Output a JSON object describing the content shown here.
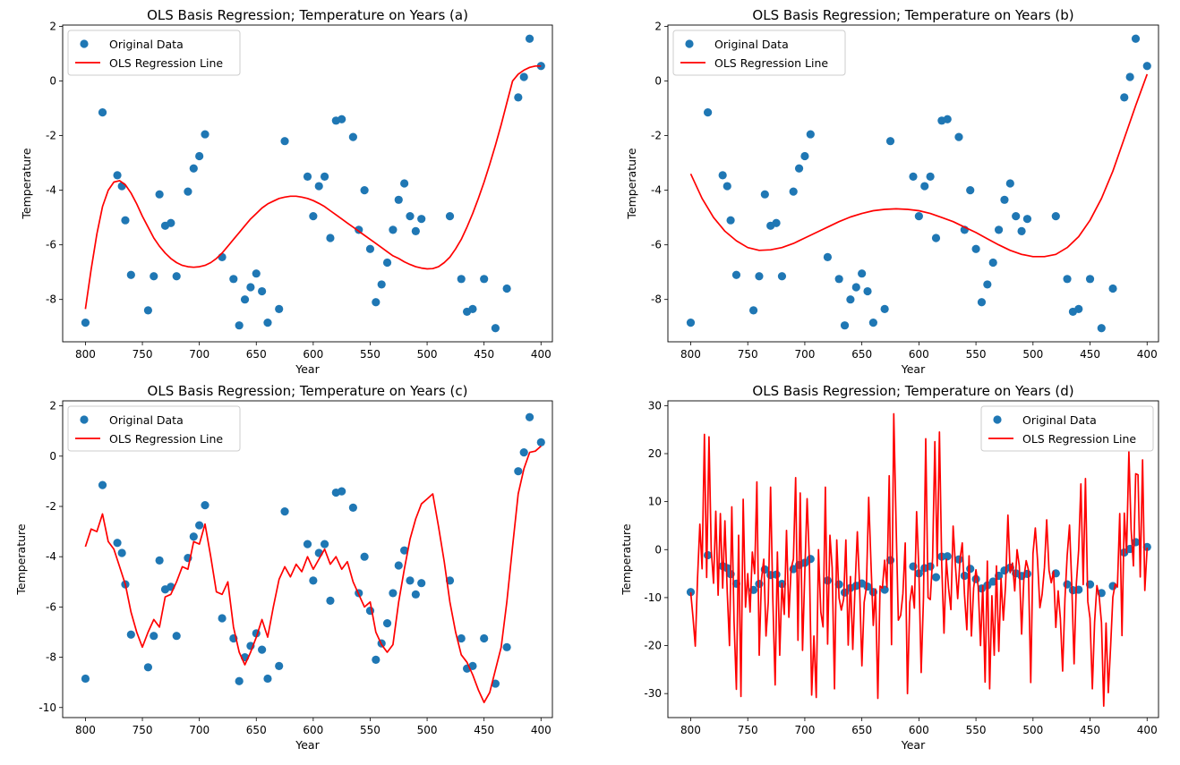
{
  "figure": {
    "xlabel": "Year",
    "ylabel": "Temperature"
  },
  "colors": {
    "points": "#1f77b4",
    "line": "#ff0000"
  },
  "legend_labels": {
    "points": "Original Data",
    "line": "OLS Regression Line"
  },
  "scatter_data": {
    "x": [
      800,
      785,
      772,
      768,
      765,
      760,
      745,
      740,
      735,
      730,
      725,
      720,
      710,
      705,
      700,
      695,
      680,
      670,
      665,
      660,
      655,
      650,
      645,
      640,
      630,
      625,
      605,
      600,
      595,
      590,
      585,
      580,
      575,
      565,
      560,
      555,
      550,
      545,
      540,
      535,
      530,
      525,
      520,
      515,
      510,
      505,
      480,
      470,
      465,
      460,
      450,
      440,
      430,
      420,
      415,
      410,
      400
    ],
    "y": [
      -8.85,
      -1.15,
      -3.45,
      -3.85,
      -5.1,
      -7.1,
      -8.4,
      -7.15,
      -4.15,
      -5.3,
      -5.2,
      -7.15,
      -4.05,
      -3.2,
      -2.75,
      -1.95,
      -6.45,
      -7.25,
      -8.95,
      -8.0,
      -7.55,
      -7.05,
      -7.7,
      -8.85,
      -8.35,
      -2.2,
      -3.5,
      -4.95,
      -3.85,
      -3.5,
      -5.75,
      -1.45,
      -1.4,
      -2.05,
      -5.45,
      -4.0,
      -6.15,
      -8.1,
      -7.45,
      -6.65,
      -5.45,
      -4.35,
      -3.75,
      -4.95,
      -5.5,
      -5.05,
      -4.95,
      -7.25,
      -8.45,
      -8.35,
      -7.25,
      -9.05,
      -7.6,
      -0.6,
      0.15,
      1.55,
      0.55
    ]
  },
  "chart_data": [
    {
      "type": "scatter",
      "title": "OLS Basis Regression; Temperature on Years (a)",
      "xlabel": "Year",
      "ylabel": "Temperature",
      "xlim": [
        820,
        390
      ],
      "ylim": [
        -9.55,
        2.05
      ],
      "xticks": [
        800,
        750,
        700,
        650,
        600,
        550,
        500,
        450,
        400
      ],
      "yticks": [
        2,
        0,
        -2,
        -4,
        -6,
        -8
      ],
      "legend": "top-left",
      "series": [
        {
          "name": "Original Data",
          "kind": "scatter"
        },
        {
          "name": "OLS Regression Line",
          "kind": "line",
          "x": [
            800,
            795,
            790,
            785,
            780,
            775,
            770,
            765,
            760,
            755,
            750,
            745,
            740,
            735,
            730,
            725,
            720,
            715,
            710,
            705,
            700,
            695,
            690,
            685,
            680,
            675,
            670,
            665,
            660,
            655,
            650,
            645,
            640,
            635,
            630,
            625,
            620,
            615,
            610,
            605,
            600,
            595,
            590,
            585,
            580,
            575,
            570,
            565,
            560,
            555,
            550,
            545,
            540,
            535,
            530,
            525,
            520,
            515,
            510,
            505,
            500,
            495,
            490,
            485,
            480,
            475,
            470,
            465,
            460,
            455,
            450,
            445,
            440,
            435,
            430,
            425,
            420,
            415,
            410,
            405,
            400
          ],
          "y": [
            -8.35,
            -6.9,
            -5.6,
            -4.6,
            -4.0,
            -3.7,
            -3.65,
            -3.8,
            -4.1,
            -4.5,
            -4.95,
            -5.35,
            -5.75,
            -6.05,
            -6.3,
            -6.5,
            -6.65,
            -6.75,
            -6.8,
            -6.82,
            -6.8,
            -6.75,
            -6.65,
            -6.5,
            -6.3,
            -6.05,
            -5.8,
            -5.55,
            -5.3,
            -5.05,
            -4.85,
            -4.65,
            -4.5,
            -4.4,
            -4.3,
            -4.25,
            -4.22,
            -4.22,
            -4.25,
            -4.3,
            -4.38,
            -4.48,
            -4.6,
            -4.75,
            -4.9,
            -5.05,
            -5.2,
            -5.35,
            -5.5,
            -5.65,
            -5.8,
            -5.95,
            -6.1,
            -6.25,
            -6.4,
            -6.5,
            -6.62,
            -6.72,
            -6.8,
            -6.85,
            -6.88,
            -6.87,
            -6.8,
            -6.65,
            -6.45,
            -6.15,
            -5.8,
            -5.35,
            -4.85,
            -4.3,
            -3.7,
            -3.05,
            -2.35,
            -1.6,
            -0.8,
            0.0,
            0.25,
            0.4,
            0.5,
            0.55,
            0.55
          ]
        }
      ]
    },
    {
      "type": "scatter",
      "title": "OLS Basis Regression; Temperature on Years (b)",
      "xlabel": "Year",
      "ylabel": "Temperature",
      "xlim": [
        820,
        390
      ],
      "ylim": [
        -9.55,
        2.05
      ],
      "xticks": [
        800,
        750,
        700,
        650,
        600,
        550,
        500,
        450,
        400
      ],
      "yticks": [
        2,
        0,
        -2,
        -4,
        -6,
        -8
      ],
      "legend": "top-left",
      "series": [
        {
          "name": "Original Data",
          "kind": "scatter"
        },
        {
          "name": "OLS Regression Line",
          "kind": "line",
          "x": [
            800,
            790,
            780,
            770,
            760,
            750,
            740,
            730,
            720,
            710,
            700,
            690,
            680,
            670,
            660,
            650,
            640,
            630,
            620,
            610,
            600,
            590,
            580,
            570,
            560,
            550,
            540,
            530,
            520,
            510,
            500,
            490,
            480,
            470,
            460,
            450,
            440,
            430,
            420,
            410,
            400
          ],
          "y": [
            -3.4,
            -4.3,
            -5.0,
            -5.5,
            -5.85,
            -6.1,
            -6.2,
            -6.18,
            -6.1,
            -5.95,
            -5.75,
            -5.55,
            -5.35,
            -5.15,
            -4.98,
            -4.85,
            -4.75,
            -4.7,
            -4.68,
            -4.7,
            -4.75,
            -4.85,
            -5.0,
            -5.15,
            -5.35,
            -5.55,
            -5.78,
            -6.0,
            -6.2,
            -6.35,
            -6.43,
            -6.43,
            -6.35,
            -6.1,
            -5.7,
            -5.1,
            -4.3,
            -3.3,
            -2.1,
            -0.9,
            0.25
          ]
        }
      ]
    },
    {
      "type": "scatter",
      "title": "OLS Basis Regression; Temperature on Years (c)",
      "xlabel": "Year",
      "ylabel": "Temperature",
      "xlim": [
        820,
        390
      ],
      "ylim": [
        -10.4,
        2.2
      ],
      "xticks": [
        800,
        750,
        700,
        650,
        600,
        550,
        500,
        450,
        400
      ],
      "yticks": [
        2,
        0,
        -2,
        -4,
        -6,
        -8,
        -10
      ],
      "legend": "top-left",
      "series": [
        {
          "name": "Original Data",
          "kind": "scatter"
        },
        {
          "name": "OLS Regression Line",
          "kind": "line",
          "x": [
            800,
            795,
            790,
            785,
            780,
            775,
            770,
            765,
            760,
            755,
            750,
            745,
            740,
            735,
            730,
            725,
            720,
            715,
            710,
            705,
            700,
            695,
            690,
            685,
            680,
            675,
            670,
            665,
            660,
            655,
            650,
            645,
            640,
            635,
            630,
            625,
            620,
            615,
            610,
            605,
            600,
            595,
            590,
            585,
            580,
            575,
            570,
            565,
            560,
            555,
            550,
            545,
            540,
            535,
            530,
            525,
            520,
            515,
            510,
            505,
            500,
            495,
            490,
            485,
            480,
            475,
            470,
            465,
            460,
            455,
            450,
            445,
            440,
            435,
            430,
            425,
            420,
            415,
            410,
            405,
            400
          ],
          "y": [
            -3.6,
            -2.9,
            -3.0,
            -2.3,
            -3.4,
            -3.7,
            -4.4,
            -5.1,
            -6.2,
            -7.0,
            -7.6,
            -7.0,
            -6.5,
            -6.8,
            -5.6,
            -5.5,
            -5.0,
            -4.4,
            -4.5,
            -3.4,
            -3.5,
            -2.7,
            -4.0,
            -5.4,
            -5.5,
            -5.0,
            -6.8,
            -7.8,
            -8.3,
            -7.8,
            -7.2,
            -6.5,
            -7.2,
            -6.0,
            -4.9,
            -4.4,
            -4.8,
            -4.3,
            -4.6,
            -4.0,
            -4.5,
            -4.1,
            -3.7,
            -4.3,
            -4.0,
            -4.5,
            -4.2,
            -5.0,
            -5.5,
            -6.0,
            -5.8,
            -7.0,
            -7.5,
            -7.8,
            -7.5,
            -5.8,
            -4.5,
            -3.3,
            -2.5,
            -1.9,
            -1.7,
            -1.5,
            -2.8,
            -4.2,
            -5.8,
            -7.0,
            -7.9,
            -8.2,
            -8.7,
            -9.3,
            -9.8,
            -9.4,
            -8.5,
            -7.6,
            -5.8,
            -3.6,
            -1.5,
            -0.5,
            0.15,
            0.2,
            0.4
          ]
        }
      ]
    },
    {
      "type": "scatter",
      "title": "OLS Basis Regression; Temperature on Years (d)",
      "xlabel": "Year",
      "ylabel": "Temperature",
      "xlim": [
        820,
        390
      ],
      "ylim": [
        -35,
        31
      ],
      "xticks": [
        800,
        750,
        700,
        650,
        600,
        550,
        500,
        450,
        400
      ],
      "yticks": [
        30,
        20,
        10,
        0,
        -10,
        -20,
        -30
      ],
      "legend": "top-right",
      "series": [
        {
          "name": "Original Data",
          "kind": "scatter"
        },
        {
          "name": "OLS Regression Line",
          "kind": "line",
          "x": [
            800,
            798,
            796,
            794,
            792,
            790,
            788,
            786,
            784,
            782,
            780,
            778,
            776,
            774,
            772,
            770,
            768,
            766,
            764,
            762,
            760,
            758,
            756,
            754,
            752,
            750,
            748,
            746,
            744,
            742,
            740,
            738,
            736,
            734,
            732,
            730,
            728,
            726,
            724,
            722,
            720,
            718,
            716,
            714,
            712,
            710,
            708,
            706,
            704,
            702,
            700,
            698,
            696,
            694,
            692,
            690,
            688,
            686,
            684,
            682,
            680,
            678,
            676,
            674,
            672,
            670,
            668,
            666,
            664,
            662,
            660,
            658,
            656,
            654,
            652,
            650,
            648,
            646,
            644,
            642,
            640,
            638,
            636,
            634,
            632,
            630,
            628,
            626,
            624,
            622,
            620,
            618,
            616,
            614,
            612,
            610,
            608,
            606,
            604,
            602,
            600,
            598,
            596,
            594,
            592,
            590,
            588,
            586,
            584,
            582,
            580,
            578,
            576,
            574,
            572,
            570,
            568,
            566,
            564,
            562,
            560,
            558,
            556,
            554,
            552,
            550,
            548,
            546,
            544,
            542,
            540,
            538,
            536,
            534,
            532,
            530,
            528,
            526,
            524,
            522,
            520,
            518,
            516,
            514,
            512,
            510,
            508,
            506,
            504,
            502,
            500,
            498,
            496,
            494,
            492,
            490,
            488,
            486,
            484,
            482,
            480,
            478,
            476,
            474,
            472,
            470,
            468,
            466,
            464,
            462,
            460,
            458,
            456,
            454,
            452,
            450,
            448,
            446,
            444,
            442,
            440,
            438,
            436,
            434,
            432,
            430,
            428,
            426,
            424,
            422,
            420,
            418,
            416,
            414,
            412,
            410,
            408,
            406,
            404,
            402,
            400
          ],
          "y": [
            -8.9,
            -14.0,
            -20.1,
            -6.0,
            5.3,
            -4.0,
            24.0,
            -5.8,
            23.5,
            0.0,
            -7.0,
            8.0,
            -9.5,
            7.5,
            -8.0,
            6.0,
            -8.9,
            -20.0,
            8.9,
            -15.0,
            -29.1,
            3.0,
            -30.6,
            10.5,
            -12.0,
            -5.0,
            -13.0,
            -0.5,
            -5.0,
            14.1,
            -22.0,
            -6.2,
            -2.0,
            -18.0,
            -11.0,
            13.0,
            -10.3,
            -28.2,
            -0.5,
            -22.0,
            -7.0,
            -13.5,
            4.0,
            -14.1,
            -4.0,
            -2.0,
            15.0,
            -18.9,
            11.8,
            -21.0,
            -5.0,
            10.6,
            -2.2,
            -30.3,
            -18.0,
            -30.8,
            0.0,
            -13.0,
            -16.1,
            13.0,
            -19.7,
            3.0,
            -3.8,
            -29.0,
            2.0,
            -10.1,
            -12.6,
            -10.3,
            2.0,
            -19.9,
            -5.6,
            -20.8,
            -8.0,
            3.7,
            -7.5,
            -24.2,
            -11.0,
            -7.9,
            10.9,
            -2.6,
            -15.8,
            -8.2,
            -31.0,
            -7.6,
            -8.0,
            -2.2,
            -7.8,
            15.4,
            -19.8,
            28.3,
            5.2,
            -14.7,
            -13.7,
            -9.2,
            1.4,
            -30.0,
            -11.0,
            -7.6,
            -12.2,
            7.9,
            -4.6,
            -25.6,
            -10.0,
            23.1,
            -10.0,
            -10.4,
            -1.6,
            22.5,
            -3.4,
            24.5,
            -3.4,
            -17.4,
            -2.0,
            -8.0,
            -12.5,
            4.9,
            -3.4,
            -10.2,
            -2.0,
            1.4,
            -9.4,
            -16.7,
            -1.3,
            -18.0,
            -8.0,
            -4.2,
            -7.7,
            -20.0,
            -7.5,
            -27.6,
            -2.4,
            -29.0,
            -9.6,
            -22.0,
            -3.4,
            -21.2,
            -6.0,
            -14.7,
            -7.4,
            7.2,
            -4.8,
            -2.8,
            -8.6,
            0.0,
            -3.4,
            -17.6,
            -6.0,
            -2.3,
            -4.2,
            -27.7,
            -0.8,
            4.5,
            -2.2,
            -12.1,
            -9.3,
            -3.7,
            6.2,
            -4.3,
            -6.9,
            -4.5,
            -16.2,
            -8.6,
            -14.4,
            -25.3,
            -10.2,
            -1.2,
            5.1,
            -7.2,
            -23.8,
            -7.2,
            -0.1,
            13.7,
            -7.3,
            14.8,
            -10.8,
            -14.3,
            -29.0,
            -15.1,
            -7.5,
            -9.7,
            -15.2,
            -32.6,
            -15.3,
            -29.8,
            -20.2,
            -9.9,
            -7.2,
            -7.8,
            7.5,
            -17.9,
            7.6,
            -0.7,
            20.4,
            4.2,
            -3.4,
            15.8,
            15.6,
            -5.7,
            18.7,
            -8.5,
            0.4
          ]
        }
      ]
    }
  ]
}
